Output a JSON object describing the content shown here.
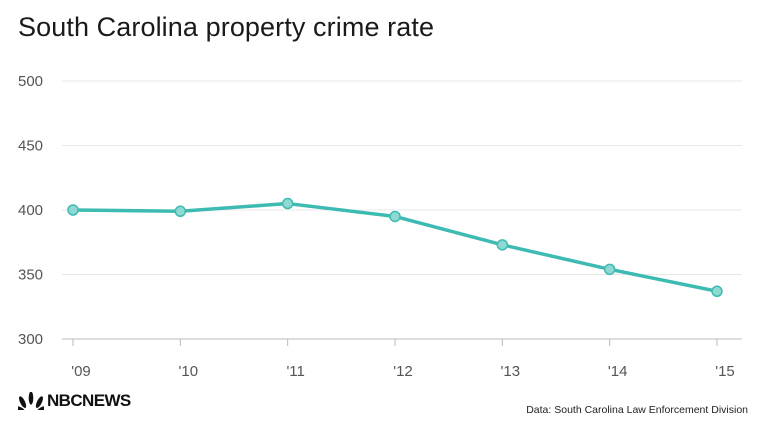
{
  "header": {
    "title": "South Carolina property crime rate"
  },
  "footer": {
    "logo_text": "NBCNEWS",
    "logo_icon": "peacock-icon",
    "source": "Data: South Carolina Law Enforcement Division"
  },
  "colors": {
    "line": "#3dbbb3",
    "grid": "#e8e8e8",
    "axis": "#bbbbbb"
  },
  "chart_data": {
    "type": "line",
    "title": "South Carolina property crime rate",
    "xlabel": "",
    "ylabel": "",
    "categories": [
      "'09",
      "'10",
      "'11",
      "'12",
      "'13",
      "'14",
      "'15"
    ],
    "series": [
      {
        "values": [
          400,
          399,
          405,
          395,
          373,
          354,
          337
        ]
      }
    ],
    "yticks": [
      300,
      350,
      400,
      450,
      500
    ],
    "ylim": [
      300,
      500
    ],
    "grid": true,
    "legend": "none"
  }
}
